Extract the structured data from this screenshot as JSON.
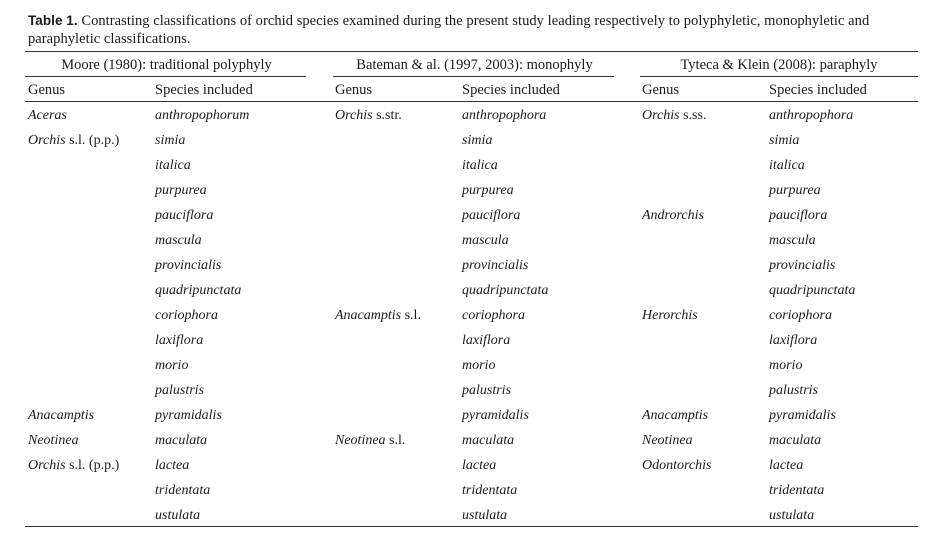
{
  "caption": {
    "label": "Table 1.",
    "text": "Contrasting classifications of orchid species examined during the present study leading respectively to polyphyletic, monophyletic and paraphyletic classifications."
  },
  "groups": [
    {
      "title": "Moore (1980): traditional polyphyly"
    },
    {
      "title": "Bateman & al. (1997, 2003): monophyly"
    },
    {
      "title": "Tyteca & Klein (2008): paraphyly"
    }
  ],
  "column_headers": {
    "genus": "Genus",
    "species": "Species included"
  },
  "rows": [
    {
      "moore_genus": "Aceras",
      "moore_genus_suffix": "",
      "moore_species": "anthropophorum",
      "bateman_genus": "Orchis",
      "bateman_genus_suffix": " s.str.",
      "bateman_species": "anthropophora",
      "tyteca_genus": "Orchis",
      "tyteca_genus_suffix": " s.ss.",
      "tyteca_species": "anthropophora"
    },
    {
      "moore_genus": "Orchis",
      "moore_genus_suffix": " s.l. (p.p.)",
      "moore_species": "simia",
      "bateman_genus": "",
      "bateman_genus_suffix": "",
      "bateman_species": "simia",
      "tyteca_genus": "",
      "tyteca_genus_suffix": "",
      "tyteca_species": "simia"
    },
    {
      "moore_genus": "",
      "moore_genus_suffix": "",
      "moore_species": "italica",
      "bateman_genus": "",
      "bateman_genus_suffix": "",
      "bateman_species": "italica",
      "tyteca_genus": "",
      "tyteca_genus_suffix": "",
      "tyteca_species": "italica"
    },
    {
      "moore_genus": "",
      "moore_genus_suffix": "",
      "moore_species": "purpurea",
      "bateman_genus": "",
      "bateman_genus_suffix": "",
      "bateman_species": "purpurea",
      "tyteca_genus": "",
      "tyteca_genus_suffix": "",
      "tyteca_species": "purpurea"
    },
    {
      "moore_genus": "",
      "moore_genus_suffix": "",
      "moore_species": "pauciflora",
      "bateman_genus": "",
      "bateman_genus_suffix": "",
      "bateman_species": "pauciflora",
      "tyteca_genus": "Androrchis",
      "tyteca_genus_suffix": "",
      "tyteca_species": "pauciflora"
    },
    {
      "moore_genus": "",
      "moore_genus_suffix": "",
      "moore_species": "mascula",
      "bateman_genus": "",
      "bateman_genus_suffix": "",
      "bateman_species": "mascula",
      "tyteca_genus": "",
      "tyteca_genus_suffix": "",
      "tyteca_species": "mascula"
    },
    {
      "moore_genus": "",
      "moore_genus_suffix": "",
      "moore_species": "provincialis",
      "bateman_genus": "",
      "bateman_genus_suffix": "",
      "bateman_species": "provincialis",
      "tyteca_genus": "",
      "tyteca_genus_suffix": "",
      "tyteca_species": "provincialis"
    },
    {
      "moore_genus": "",
      "moore_genus_suffix": "",
      "moore_species": "quadripunctata",
      "bateman_genus": "",
      "bateman_genus_suffix": "",
      "bateman_species": "quadripunctata",
      "tyteca_genus": "",
      "tyteca_genus_suffix": "",
      "tyteca_species": "quadripunctata"
    },
    {
      "moore_genus": "",
      "moore_genus_suffix": "",
      "moore_species": "coriophora",
      "bateman_genus": "Anacamptis",
      "bateman_genus_suffix": " s.l.",
      "bateman_species": "coriophora",
      "tyteca_genus": "Herorchis",
      "tyteca_genus_suffix": "",
      "tyteca_species": "coriophora"
    },
    {
      "moore_genus": "",
      "moore_genus_suffix": "",
      "moore_species": "laxiflora",
      "bateman_genus": "",
      "bateman_genus_suffix": "",
      "bateman_species": "laxiflora",
      "tyteca_genus": "",
      "tyteca_genus_suffix": "",
      "tyteca_species": "laxiflora"
    },
    {
      "moore_genus": "",
      "moore_genus_suffix": "",
      "moore_species": "morio",
      "bateman_genus": "",
      "bateman_genus_suffix": "",
      "bateman_species": "morio",
      "tyteca_genus": "",
      "tyteca_genus_suffix": "",
      "tyteca_species": "morio"
    },
    {
      "moore_genus": "",
      "moore_genus_suffix": "",
      "moore_species": "palustris",
      "bateman_genus": "",
      "bateman_genus_suffix": "",
      "bateman_species": "palustris",
      "tyteca_genus": "",
      "tyteca_genus_suffix": "",
      "tyteca_species": "palustris"
    },
    {
      "moore_genus": "Anacamptis",
      "moore_genus_suffix": "",
      "moore_species": "pyramidalis",
      "bateman_genus": "",
      "bateman_genus_suffix": "",
      "bateman_species": "pyramidalis",
      "tyteca_genus": "Anacamptis",
      "tyteca_genus_suffix": "",
      "tyteca_species": "pyramidalis"
    },
    {
      "moore_genus": "Neotinea",
      "moore_genus_suffix": "",
      "moore_species": "maculata",
      "bateman_genus": "Neotinea",
      "bateman_genus_suffix": " s.l.",
      "bateman_species": "maculata",
      "tyteca_genus": "Neotinea",
      "tyteca_genus_suffix": "",
      "tyteca_species": "maculata"
    },
    {
      "moore_genus": "Orchis",
      "moore_genus_suffix": " s.l. (p.p.)",
      "moore_species": "lactea",
      "bateman_genus": "",
      "bateman_genus_suffix": "",
      "bateman_species": "lactea",
      "tyteca_genus": "Odontorchis",
      "tyteca_genus_suffix": "",
      "tyteca_species": "lactea"
    },
    {
      "moore_genus": "",
      "moore_genus_suffix": "",
      "moore_species": "tridentata",
      "bateman_genus": "",
      "bateman_genus_suffix": "",
      "bateman_species": "tridentata",
      "tyteca_genus": "",
      "tyteca_genus_suffix": "",
      "tyteca_species": "tridentata"
    },
    {
      "moore_genus": "",
      "moore_genus_suffix": "",
      "moore_species": "ustulata",
      "bateman_genus": "",
      "bateman_genus_suffix": "",
      "bateman_species": "ustulata",
      "tyteca_genus": "",
      "tyteca_genus_suffix": "",
      "tyteca_species": "ustulata"
    }
  ]
}
